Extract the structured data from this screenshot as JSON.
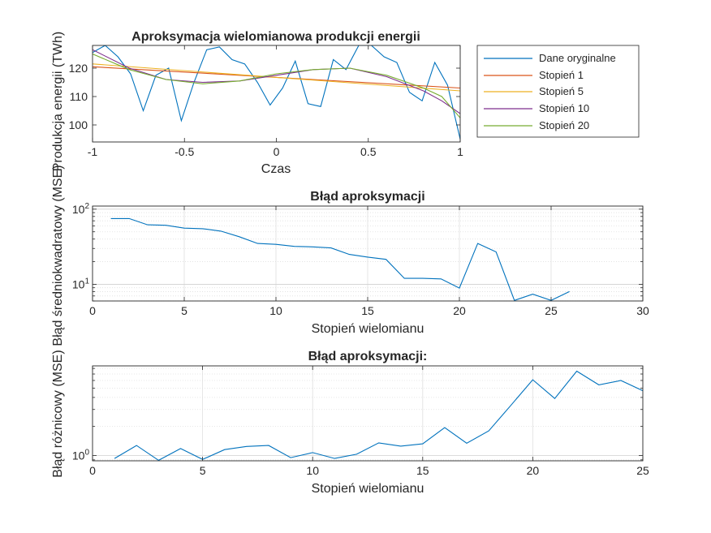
{
  "colors": {
    "blue": "#0072BD",
    "orange": "#D95319",
    "yellow": "#EDB120",
    "purple": "#7E2F8E",
    "green": "#77AC30",
    "axis": "#262626",
    "grid": "#dfdfdf"
  },
  "chart_data": [
    {
      "type": "line",
      "title": "Aproksymacja wielomianowa produkcji energii",
      "xlabel": "Czas",
      "ylabel": "Produkcja energii (TWh)",
      "xlim": [
        -1,
        1
      ],
      "ylim": [
        94,
        128
      ],
      "xticks": [
        -1,
        -0.5,
        0,
        0.5,
        1
      ],
      "xticklabels": [
        "-1",
        "-0.5",
        "0",
        "0.5",
        "1"
      ],
      "yticks": [
        100,
        110,
        120
      ],
      "yticklabels": [
        "100",
        "110",
        "120"
      ],
      "grid": false,
      "legend_position": "outside-right",
      "series": [
        {
          "name": "Dane oryginalne",
          "color": "#0072BD",
          "x": [
            -1,
            -0.931,
            -0.862,
            -0.793,
            -0.724,
            -0.655,
            -0.586,
            -0.517,
            -0.448,
            -0.379,
            -0.31,
            -0.241,
            -0.172,
            -0.103,
            -0.034,
            0.034,
            0.103,
            0.172,
            0.241,
            0.31,
            0.379,
            0.448,
            0.517,
            0.586,
            0.655,
            0.724,
            0.793,
            0.862,
            0.931,
            1
          ],
          "y": [
            125.5,
            128,
            124,
            118,
            105,
            117.5,
            120,
            101.5,
            115,
            126.5,
            127.5,
            123,
            121.5,
            115,
            107,
            113,
            122.5,
            107.5,
            106.5,
            123,
            119.5,
            128,
            128,
            124,
            122,
            111.5,
            108.5,
            122,
            114,
            95
          ]
        },
        {
          "name": "Stopień 1",
          "color": "#D95319",
          "x": [
            -1,
            1
          ],
          "y": [
            120.5,
            113
          ]
        },
        {
          "name": "Stopień 5",
          "color": "#EDB120",
          "x": [
            -1,
            1
          ],
          "y": [
            121.5,
            112
          ]
        },
        {
          "name": "Stopień 10",
          "color": "#7E2F8E",
          "x": [
            -1,
            -0.8,
            -0.6,
            -0.4,
            -0.2,
            0,
            0.2,
            0.4,
            0.6,
            0.8,
            0.9,
            1
          ],
          "y": [
            126.5,
            120,
            116,
            115,
            115.5,
            117.5,
            119.5,
            120,
            117,
            112,
            108.5,
            104
          ]
        },
        {
          "name": "Stopień 20",
          "color": "#77AC30",
          "x": [
            -1,
            -0.8,
            -0.6,
            -0.4,
            -0.2,
            0,
            0.2,
            0.4,
            0.6,
            0.8,
            0.9,
            1
          ],
          "y": [
            125,
            119.5,
            116,
            114.5,
            115.5,
            118,
            119.5,
            120,
            117.5,
            113,
            110,
            102.5
          ]
        }
      ],
      "legend": [
        "Dane oryginalne",
        "Stopień 1",
        "Stopień 5",
        "Stopień 10",
        "Stopień 20"
      ]
    },
    {
      "type": "line",
      "title": "Błąd aproksymacji",
      "xlabel": "Stopień wielomianu",
      "ylabel": "Błąd średniokwadratowy (MSE)",
      "yscale": "log",
      "xlim": [
        0,
        30
      ],
      "ylim": [
        6,
        110
      ],
      "xticks": [
        0,
        5,
        10,
        15,
        20,
        25,
        30
      ],
      "xticklabels": [
        "0",
        "5",
        "10",
        "15",
        "20",
        "25",
        "30"
      ],
      "ytick_labels": [
        {
          "value": 10,
          "base": "10",
          "exp": "1"
        },
        {
          "value": 100,
          "base": "10",
          "exp": "2"
        }
      ],
      "grid": true,
      "series": [
        {
          "color": "#0072BD",
          "x": [
            1,
            2,
            3,
            4,
            5,
            6,
            7,
            8,
            9,
            10,
            11,
            12,
            13,
            14,
            15,
            16,
            17,
            18,
            19,
            20,
            21,
            22,
            23,
            24,
            25,
            26
          ],
          "y": [
            75,
            75,
            62,
            61,
            56,
            55,
            51,
            43,
            35,
            34,
            32,
            31.5,
            30.5,
            25,
            23,
            21.5,
            12,
            12,
            11.8,
            8.9,
            35,
            27,
            6.1,
            7.4,
            6.1,
            8
          ]
        }
      ]
    },
    {
      "type": "line",
      "title": "Błąd aproksymacji:",
      "xlabel": "Stopień wielomianu",
      "ylabel": "Błąd różnicowy (MSE)",
      "yscale": "log",
      "xlim": [
        0,
        25
      ],
      "ylim": [
        0.88,
        8.5
      ],
      "xticks": [
        0,
        5,
        10,
        15,
        20,
        25
      ],
      "xticklabels": [
        "0",
        "5",
        "10",
        "15",
        "20",
        "25"
      ],
      "ytick_labels": [
        {
          "value": 1,
          "base": "10",
          "exp": "0"
        }
      ],
      "grid": true,
      "series": [
        {
          "color": "#0072BD",
          "x": [
            1,
            2,
            3,
            4,
            5,
            6,
            7,
            8,
            9,
            10,
            11,
            12,
            13,
            14,
            15,
            16,
            17,
            18,
            19,
            20,
            21,
            22,
            23,
            24,
            25
          ],
          "y": [
            0.93,
            1.27,
            0.89,
            1.18,
            0.91,
            1.15,
            1.24,
            1.27,
            0.95,
            1.07,
            0.93,
            1.03,
            1.35,
            1.25,
            1.32,
            1.95,
            1.34,
            1.8,
            3.3,
            6.1,
            3.9,
            7.5,
            5.4,
            6.0,
            4.7
          ]
        }
      ]
    }
  ]
}
